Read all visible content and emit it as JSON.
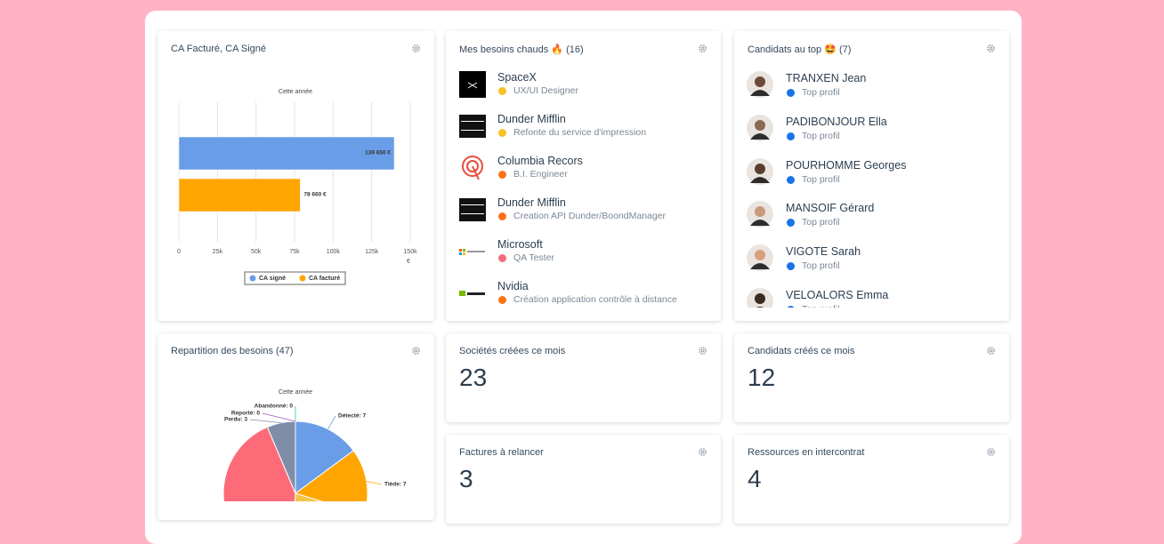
{
  "chart_data": [
    {
      "type": "bar",
      "orientation": "horizontal",
      "title": "CA Facturé, CA Signé",
      "subtitle": "Cette année",
      "series": [
        {
          "name": "CA signé",
          "color": "#6a9de8",
          "values": [
            139650
          ],
          "value_labels": [
            "139 650 €"
          ]
        },
        {
          "name": "CA facturé",
          "color": "#ffa500",
          "values": [
            78660
          ],
          "value_labels": [
            "78 660 €"
          ]
        }
      ],
      "xlim": [
        0,
        150000
      ],
      "xticks": [
        0,
        {
          "value": 25000,
          "label": "25k"
        },
        {
          "value": 50000,
          "label": "50k"
        },
        {
          "value": 75000,
          "label": "75k"
        },
        {
          "value": 100000,
          "label": "100k"
        },
        {
          "value": 125000,
          "label": "125k"
        },
        {
          "value": 150000,
          "label": "150k"
        }
      ],
      "x_label": "€",
      "grid": true,
      "legend": "bottom"
    },
    {
      "type": "pie",
      "title": "Repartition des besoins (47)",
      "subtitle": "Cette année",
      "categories": [
        "Détecté",
        "Tiède",
        null,
        null,
        "Perdu",
        "Reporté",
        "Abandonné"
      ],
      "values": [
        7,
        7,
        10,
        20,
        3,
        0,
        0
      ],
      "value_labels": [
        "Détecté: 7",
        "Tiède: 7",
        null,
        null,
        "Perdu: 3",
        "Reporté: 0",
        "Abandonné: 0"
      ],
      "colors": [
        "#6a9de8",
        "#ffa500",
        "#f6c343",
        "#fd6b78",
        "#7f8ea8",
        "#9b59b6",
        "#2ecc71"
      ]
    }
  ],
  "widgets": {
    "besoins": {
      "title": "Mes besoins chauds 🔥 (16)",
      "items": [
        {
          "company": "SpaceX",
          "need": "UX/UI Designer",
          "status_color": "#f7c325"
        },
        {
          "company": "Dunder Mifflin",
          "need": "Refonte du service d'impression",
          "status_color": "#f7c325"
        },
        {
          "company": "Columbia Recors",
          "need": "B.I. Engineer",
          "status_color": "#f97316"
        },
        {
          "company": "Dunder Mifflin",
          "need": "Creation API Dunder/BoondManager",
          "status_color": "#f97316"
        },
        {
          "company": "Microsoft",
          "need": "QA Tester",
          "status_color": "#f06f7b"
        },
        {
          "company": "Nvidia",
          "need": "Création application contrôle à distance",
          "status_color": "#f97316"
        }
      ]
    },
    "candidats": {
      "title": "Candidats au top 🤩 (7)",
      "items": [
        {
          "name": "TRANXEN Jean",
          "tag": "Top profil"
        },
        {
          "name": "PADIBONJOUR Ella",
          "tag": "Top profil"
        },
        {
          "name": "POURHOMME Georges",
          "tag": "Top profil"
        },
        {
          "name": "MANSOIF Gérard",
          "tag": "Top profil"
        },
        {
          "name": "VIGOTE Sarah",
          "tag": "Top profil"
        },
        {
          "name": "VELOALORS Emma",
          "tag": "Top profil"
        }
      ],
      "tag_color": "#1a73e8"
    },
    "stats": [
      {
        "title": "Sociétés créées ce mois",
        "value": 23
      },
      {
        "title": "Candidats créés ce mois",
        "value": 12
      },
      {
        "title": "Factures à relancer",
        "value": 3
      },
      {
        "title": "Ressources en intercontrat",
        "value": 4
      }
    ]
  }
}
